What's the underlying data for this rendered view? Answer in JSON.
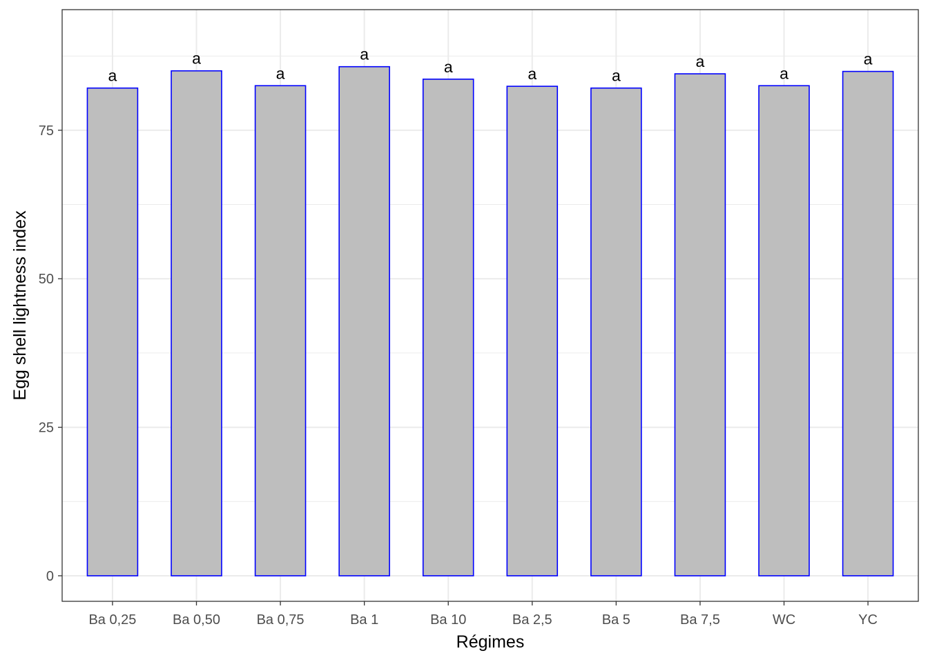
{
  "chart_data": {
    "type": "bar",
    "title": "",
    "xlabel": "Régimes",
    "ylabel": "Egg shell lightness index",
    "categories": [
      "Ba 0,25",
      "Ba 0,50",
      "Ba 0,75",
      "Ba 1",
      "Ba 10",
      "Ba 2,5",
      "Ba 5",
      "Ba 7,5",
      "WC",
      "YC"
    ],
    "values": [
      82.1,
      85.0,
      82.5,
      85.7,
      83.6,
      82.4,
      82.1,
      84.5,
      82.5,
      84.9
    ],
    "data_labels": [
      "a",
      "a",
      "a",
      "a",
      "a",
      "a",
      "a",
      "a",
      "a",
      "a"
    ],
    "yticks": [
      0,
      25,
      50,
      75
    ],
    "ylim": [
      -4.3,
      95.3
    ],
    "grid": true,
    "colors": {
      "bar_fill": "#bebebe",
      "bar_stroke": "#0000ff",
      "grid": "#ebebeb",
      "panel_border": "#333333",
      "tick_text": "#4d4d4d"
    }
  }
}
